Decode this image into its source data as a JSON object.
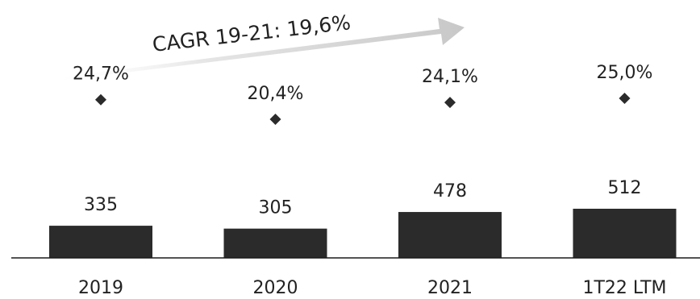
{
  "chart_data": {
    "type": "bar",
    "title": "",
    "xlabel": "",
    "ylabel": "",
    "categories": [
      "2019",
      "2020",
      "2021",
      "1T22 LTM"
    ],
    "series": [
      {
        "values": [
          335,
          305,
          478,
          512
        ],
        "labels": [
          "335",
          "305",
          "478",
          "512"
        ]
      },
      {
        "values": [
          24.7,
          20.4,
          24.1,
          25.0
        ],
        "labels": [
          "24,7%",
          "20,4%",
          "24,1%",
          "25,0%"
        ],
        "marker": "diamond"
      }
    ],
    "annotation": "CAGR 19-21: 19,6%",
    "ylim": [
      0,
      512
    ],
    "grid": false,
    "legend": "none",
    "colors": {
      "bar": "#2b2b2b",
      "marker": "#2b2b2b",
      "arrow": "#cfcfcf",
      "text": "#222222"
    }
  }
}
